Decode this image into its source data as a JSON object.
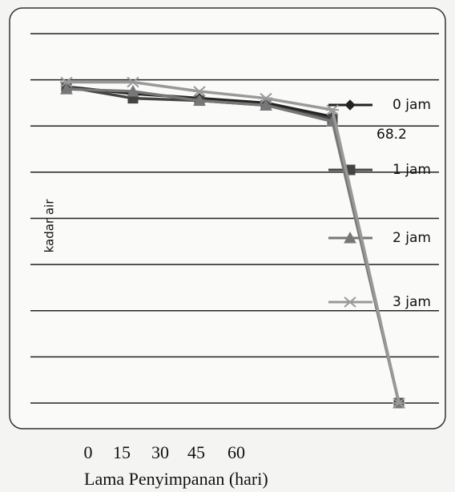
{
  "chart_data": {
    "type": "line",
    "y_label": "kadar air",
    "x_label": "Lama Penyimpanan   (hari)",
    "annotation": "68.2",
    "categories": [
      "0",
      "15",
      "30",
      "45",
      "60",
      null
    ],
    "ylim": [
      0,
      8
    ],
    "yticks": [
      0,
      1,
      2,
      3,
      4,
      5,
      6,
      7,
      8
    ],
    "grid": true,
    "series": [
      {
        "name": "0 jam",
        "color": "#222222",
        "marker": "diamond",
        "values": [
          6.85,
          6.7,
          6.6,
          6.5,
          6.2,
          0
        ]
      },
      {
        "name": "1 jam",
        "color": "#444444",
        "marker": "square",
        "values": [
          6.85,
          6.6,
          6.55,
          6.45,
          6.15,
          0
        ]
      },
      {
        "name": "2 jam",
        "color": "#777777",
        "marker": "triangle",
        "values": [
          6.8,
          6.75,
          6.55,
          6.45,
          6.1,
          0
        ]
      },
      {
        "name": "3 jam",
        "color": "#999999",
        "marker": "x",
        "values": [
          6.95,
          6.95,
          6.75,
          6.6,
          6.35,
          0
        ]
      }
    ]
  }
}
